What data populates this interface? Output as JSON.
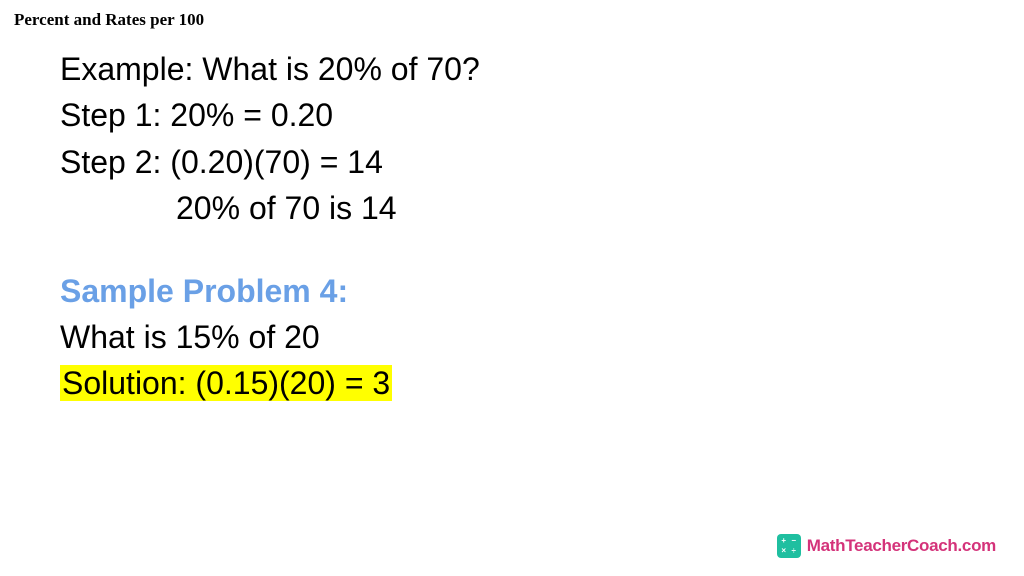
{
  "header": {
    "title": "Percent and Rates per 100"
  },
  "content": {
    "example_line": "Example: What is 20% of 70?",
    "step1": "Step 1: 20% = 0.20",
    "step2": "Step 2: (0.20)(70) = 14",
    "result": "20% of 70 is 14",
    "sample_heading": "Sample Problem 4:",
    "sample_question": "What is 15% of 20",
    "sample_solution": "Solution: (0.15)(20) = 3"
  },
  "style": {
    "body_fontsize": 32,
    "body_color": "#000000",
    "heading_color": "#6aa0e6",
    "highlight_bg": "#ffff00",
    "background": "#ffffff"
  },
  "footer": {
    "brand_text": "MathTeacherCoach.com",
    "brand_color": "#d4337a",
    "badge_color": "#1fbfa0",
    "badge_symbols": [
      "+",
      "−",
      "×",
      "÷"
    ]
  }
}
